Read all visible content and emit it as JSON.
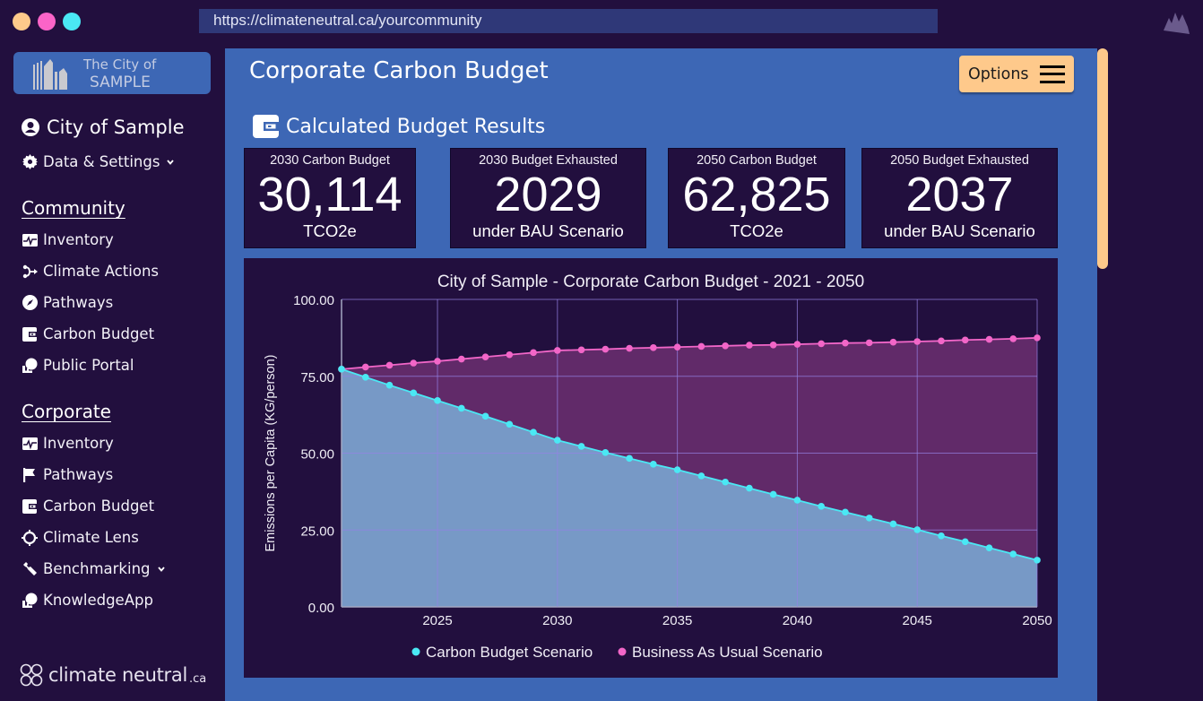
{
  "window": {
    "traffic_lights": [
      {
        "name": "close",
        "color": "#feca8b"
      },
      {
        "name": "minimize",
        "color": "#fb64c8"
      },
      {
        "name": "maximize",
        "color": "#4ae8f4"
      }
    ],
    "url": "https://climateneutral.ca/yourcommunity"
  },
  "sidebar": {
    "brand": {
      "line1": "The City of",
      "line2": "SAMPLE"
    },
    "user": {
      "label": "City of Sample",
      "icon": "user-circle-icon"
    },
    "settings": {
      "label": "Data & Settings",
      "icon": "gear-icon"
    },
    "community": {
      "heading": "Community",
      "items": [
        {
          "label": "Inventory",
          "icon": "pulse-chart-icon"
        },
        {
          "label": "Climate Actions",
          "icon": "flow-arrows-icon"
        },
        {
          "label": "Pathways",
          "icon": "compass-icon"
        },
        {
          "label": "Carbon Budget",
          "icon": "wallet-icon"
        },
        {
          "label": "Public Portal",
          "icon": "person-globe-icon"
        }
      ]
    },
    "corporate": {
      "heading": "Corporate",
      "items": [
        {
          "label": "Inventory",
          "icon": "pulse-chart-icon"
        },
        {
          "label": "Pathways",
          "icon": "flag-icon"
        },
        {
          "label": "Carbon Budget",
          "icon": "wallet-icon"
        },
        {
          "label": "Climate Lens",
          "icon": "crosshair-icon"
        },
        {
          "label": "Benchmarking",
          "icon": "wrench-icon"
        },
        {
          "label": "KnowledgeApp",
          "icon": "person-globe-icon"
        }
      ]
    },
    "footer": {
      "name": "climate neutral",
      "suffix": ".ca"
    }
  },
  "main": {
    "title": "Corporate Carbon Budget",
    "options_label": "Options",
    "section_title": "Calculated Budget Results",
    "cards": [
      {
        "label": "2030 Carbon Budget",
        "value": "30,114",
        "unit": "TCO2e"
      },
      {
        "label": "2030 Budget Exhausted",
        "value": "2029",
        "unit": "under BAU Scenario"
      },
      {
        "label": "2050 Carbon Budget",
        "value": "62,825",
        "unit": "TCO2e"
      },
      {
        "label": "2050 Budget Exhausted",
        "value": "2037",
        "unit": "under BAU Scenario"
      }
    ]
  },
  "colors": {
    "background": "#220f3e",
    "panel": "#3d67b5",
    "accent": "#fec98b",
    "budget_line": "#4ae8f4",
    "budget_fill": "#7799c6",
    "bau_line": "#f266c8",
    "bau_fill": "#612a69"
  },
  "chart_data": {
    "type": "area",
    "title": "City of Sample - Corporate Carbon Budget - 2021 - 2050",
    "xlabel": "",
    "ylabel": "Emissions per Capita (KG/person)",
    "x": [
      2021,
      2022,
      2023,
      2024,
      2025,
      2026,
      2027,
      2028,
      2029,
      2030,
      2031,
      2032,
      2033,
      2034,
      2035,
      2036,
      2037,
      2038,
      2039,
      2040,
      2041,
      2042,
      2043,
      2044,
      2045,
      2046,
      2047,
      2048,
      2049,
      2050
    ],
    "xticks": [
      "2025",
      "2030",
      "2035",
      "2040",
      "2045",
      "2050"
    ],
    "xlim": [
      2021,
      2050
    ],
    "ylim": [
      0,
      100
    ],
    "yticks": [
      "0.00",
      "25.00",
      "50.00",
      "75.00",
      "100.00"
    ],
    "grid": true,
    "legend_position": "bottom",
    "series": [
      {
        "name": "Carbon Budget Scenario",
        "color": "#4ae8f4",
        "values": [
          77.3,
          74.7,
          72.1,
          69.6,
          67.1,
          64.6,
          62.0,
          59.4,
          56.8,
          54.2,
          52.2,
          50.2,
          48.3,
          46.4,
          44.6,
          42.6,
          40.6,
          38.6,
          36.6,
          34.7,
          32.7,
          30.8,
          28.9,
          27.0,
          25.1,
          23.1,
          21.2,
          19.2,
          17.2,
          15.2
        ]
      },
      {
        "name": "Business As Usual Scenario",
        "color": "#f266c8",
        "values": [
          77.3,
          78.0,
          78.6,
          79.3,
          79.9,
          80.6,
          81.3,
          82.0,
          82.7,
          83.4,
          83.6,
          83.8,
          84.1,
          84.3,
          84.5,
          84.7,
          84.9,
          85.1,
          85.2,
          85.4,
          85.6,
          85.8,
          85.9,
          86.1,
          86.3,
          86.5,
          86.8,
          87.0,
          87.2,
          87.5
        ]
      }
    ]
  }
}
